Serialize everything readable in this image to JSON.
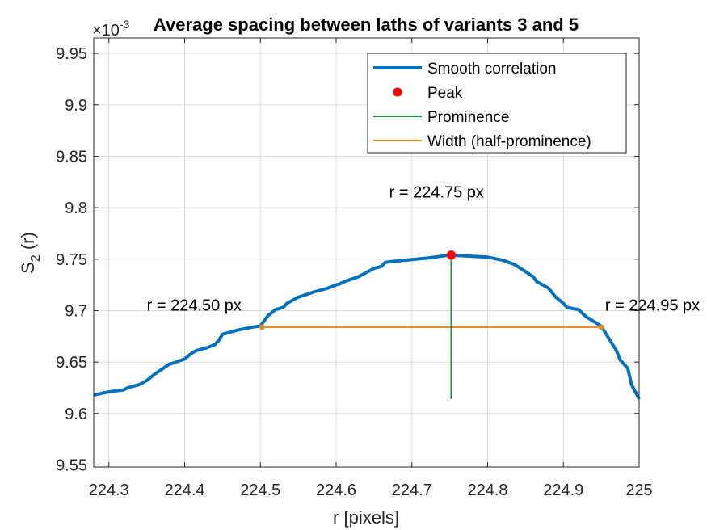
{
  "chart_data": {
    "type": "line",
    "title": "Average spacing between laths of variants 3 and 5",
    "xlabel": "r [pixels]",
    "ylabel_main": "S",
    "ylabel_sub": "2",
    "ylabel_tail": " (r)",
    "y_exponent_base": "×10",
    "y_exponent_power": "-3",
    "xlim": [
      224.28,
      225.0
    ],
    "ylim": [
      9.548,
      9.965
    ],
    "xticks": [
      224.3,
      224.4,
      224.5,
      224.6,
      224.7,
      224.8,
      224.9,
      225
    ],
    "xtick_labels": [
      "224.3",
      "224.4",
      "224.5",
      "224.6",
      "224.7",
      "224.8",
      "224.9",
      "225"
    ],
    "yticks": [
      9.55,
      9.6,
      9.65,
      9.7,
      9.75,
      9.8,
      9.85,
      9.9,
      9.95
    ],
    "ytick_labels": [
      "9.55",
      "9.6",
      "9.65",
      "9.7",
      "9.75",
      "9.8",
      "9.85",
      "9.9",
      "9.95"
    ],
    "grid": true,
    "legend_position": "top-right",
    "series": [
      {
        "name": "Smooth correlation",
        "color": "#0072BD",
        "x": [
          224.28,
          224.3,
          224.32,
          224.325,
          224.34,
          224.35,
          224.36,
          224.37,
          224.38,
          224.385,
          224.4,
          224.41,
          224.415,
          224.43,
          224.44,
          224.445,
          224.45,
          224.47,
          224.49,
          224.5,
          224.505,
          224.51,
          224.52,
          224.53,
          224.535,
          224.55,
          224.57,
          224.58,
          224.59,
          224.6,
          224.605,
          224.61,
          224.63,
          224.64,
          224.65,
          224.66,
          224.665,
          224.69,
          224.72,
          224.75,
          224.8,
          224.82,
          224.835,
          224.86,
          224.865,
          224.88,
          224.89,
          224.9,
          224.905,
          224.92,
          224.93,
          224.95,
          224.96,
          224.97,
          224.975,
          224.985,
          224.99,
          225.0
        ],
        "y": [
          9.618,
          9.621,
          9.623,
          9.625,
          9.628,
          9.632,
          9.638,
          9.643,
          9.648,
          9.649,
          9.653,
          9.659,
          9.661,
          9.664,
          9.667,
          9.671,
          9.677,
          9.681,
          9.684,
          9.685,
          9.69,
          9.695,
          9.701,
          9.703,
          9.707,
          9.713,
          9.718,
          9.72,
          9.722,
          9.725,
          9.726,
          9.728,
          9.733,
          9.737,
          9.741,
          9.743,
          9.747,
          9.749,
          9.751,
          9.754,
          9.752,
          9.749,
          9.745,
          9.733,
          9.728,
          9.722,
          9.713,
          9.707,
          9.703,
          9.701,
          9.694,
          9.685,
          9.673,
          9.661,
          9.652,
          9.644,
          9.628,
          9.614
        ]
      }
    ],
    "peak": {
      "name": "Peak",
      "color": "#FF0000",
      "x": 224.752,
      "y": 9.754
    },
    "prominence": {
      "name": "Prominence",
      "color": "#1E8C46",
      "x": 224.752,
      "y_from": 9.614,
      "y_to": 9.754
    },
    "width": {
      "name": "Width (half-prominence)",
      "color": "#E08A1A",
      "x_from": 224.502,
      "x_to": 224.95,
      "y": 9.684
    },
    "annotations": [
      {
        "text": "r = 224.75 px",
        "x": 224.67,
        "y": 9.81
      },
      {
        "text": "r = 224.50 px",
        "x": 224.35,
        "y": 9.7
      },
      {
        "text": "r = 224.95 px",
        "x": 224.955,
        "y": 9.7
      }
    ]
  }
}
